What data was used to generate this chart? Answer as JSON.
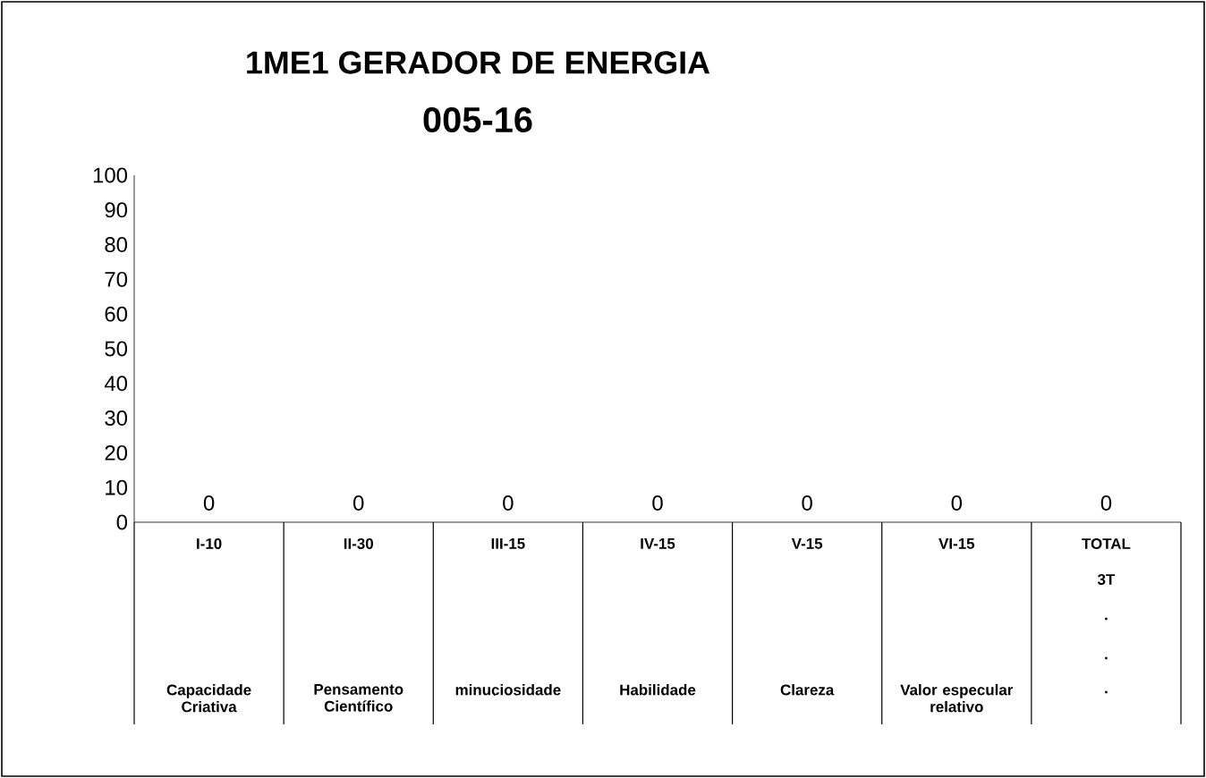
{
  "chart_data": {
    "type": "bar",
    "title": "1ME1 GERADOR DE ENERGIA",
    "subtitle": "005-16",
    "categories": [
      "I-10",
      "II-30",
      "III-15",
      "IV-15",
      "V-15",
      "VI-15",
      "TOTAL"
    ],
    "values": [
      0,
      0,
      0,
      0,
      0,
      0,
      0
    ],
    "data_labels": true,
    "ylim": [
      0,
      100
    ],
    "yticks": [
      0,
      10,
      20,
      30,
      40,
      50,
      60,
      70,
      80,
      90,
      100
    ],
    "grid": false,
    "annotations": [
      "Capacidade Criativa",
      "Pensamento Científico",
      "minuciosidade",
      "Habilidade",
      "Clareza",
      "Valor especular relativo",
      "3T",
      ".",
      ".",
      "."
    ]
  }
}
